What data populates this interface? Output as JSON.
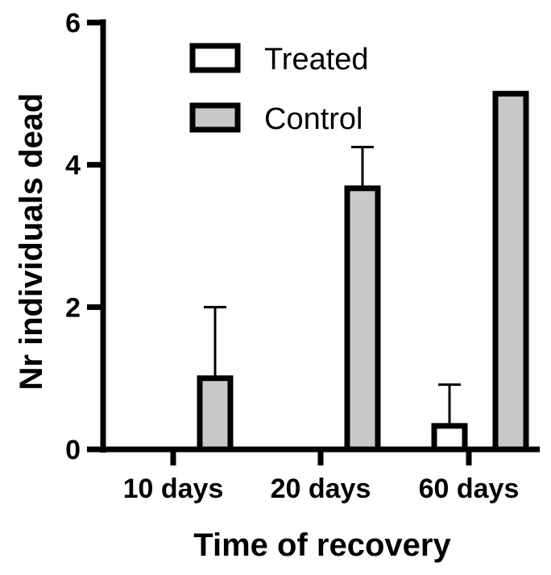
{
  "chart_data": {
    "type": "bar",
    "xlabel": "Time of recovery",
    "ylabel": "Nr individuals dead",
    "ylim": [
      0,
      6
    ],
    "yticks": [
      "0",
      "2",
      "4",
      "6"
    ],
    "categories": [
      "10 days",
      "20 days",
      "60 days"
    ],
    "series": [
      {
        "name": "Treated",
        "values": [
          0,
          0,
          0.33
        ],
        "errors": [
          0,
          0,
          0.58
        ],
        "color": "#ffffff"
      },
      {
        "name": "Control",
        "values": [
          1,
          3.67,
          5
        ],
        "errors": [
          1,
          0.58,
          0
        ],
        "color": "#c8c8c8"
      }
    ],
    "legend_position": "top-center",
    "grid": false
  }
}
